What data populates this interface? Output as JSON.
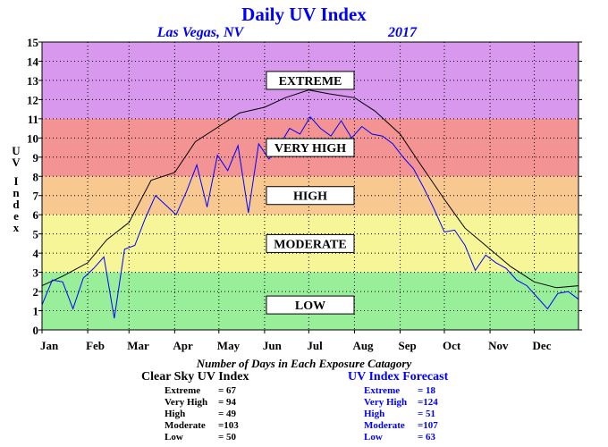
{
  "title": "Daily UV Index",
  "location": "Las Vegas, NV",
  "year": "2017",
  "colors": {
    "clear_sky_line": "#000000",
    "forecast_line": "#0000ff",
    "title": "#0000ff",
    "band_low": "#99ee99",
    "band_moderate": "#f6f699",
    "band_high": "#f8c891",
    "band_very_high": "#f39393",
    "band_extreme": "#d898ee"
  },
  "footer": {
    "caption": "Number of Days in Each Exposure Catagory",
    "clear_sky": {
      "heading": "Clear Sky UV Index",
      "rows": [
        {
          "label": "Extreme",
          "value": "= 67"
        },
        {
          "label": "Very High",
          "value": "= 94"
        },
        {
          "label": "High",
          "value": "= 49"
        },
        {
          "label": "Moderate",
          "value": "=103"
        },
        {
          "label": "Low",
          "value": "= 50"
        }
      ]
    },
    "forecast": {
      "heading": "UV Index Forecast",
      "rows": [
        {
          "label": "Extreme",
          "value": "= 18"
        },
        {
          "label": "Very High",
          "value": "=124"
        },
        {
          "label": "High",
          "value": "= 51"
        },
        {
          "label": "Moderate",
          "value": "=107"
        },
        {
          "label": "Low",
          "value": "= 63"
        }
      ]
    }
  },
  "chart_data": {
    "type": "line",
    "title": "Daily UV Index",
    "subtitle": "Las Vegas, NV 2017",
    "ylabel": "UV Index",
    "xlabel": "",
    "ylim": [
      0,
      15
    ],
    "xlim": [
      1,
      365
    ],
    "y_ticks": [
      0,
      1,
      2,
      3,
      4,
      5,
      6,
      7,
      8,
      9,
      10,
      11,
      12,
      13,
      14,
      15
    ],
    "x_tick_labels": [
      "Jan",
      "Feb",
      "Mar",
      "Apr",
      "May",
      "Jun",
      "Jul",
      "Aug",
      "Sep",
      "Oct",
      "Nov",
      "Dec"
    ],
    "grid": true,
    "bands": [
      {
        "label": "LOW",
        "from": 0,
        "to": 3
      },
      {
        "label": "MODERATE",
        "from": 3,
        "to": 6
      },
      {
        "label": "HIGH",
        "from": 6,
        "to": 8
      },
      {
        "label": "VERY HIGH",
        "from": 8,
        "to": 11
      },
      {
        "label": "EXTREME",
        "from": 11,
        "to": 15
      }
    ],
    "series": [
      {
        "name": "Clear Sky UV Index",
        "x": [
          1,
          15,
          32,
          45,
          60,
          75,
          91,
          105,
          121,
          135,
          152,
          166,
          182,
          196,
          213,
          227,
          244,
          258,
          274,
          288,
          305,
          319,
          335,
          350,
          365
        ],
        "values": [
          2.3,
          2.8,
          3.5,
          4.7,
          5.6,
          7.8,
          8.2,
          9.8,
          10.6,
          11.3,
          11.6,
          12.1,
          12.5,
          12.3,
          12.1,
          11.4,
          10.2,
          8.6,
          6.8,
          5.3,
          4.2,
          3.3,
          2.5,
          2.2,
          2.3
        ]
      },
      {
        "name": "UV Index Forecast",
        "x": [
          1,
          8,
          15,
          22,
          29,
          36,
          43,
          50,
          57,
          64,
          71,
          78,
          85,
          92,
          99,
          106,
          113,
          120,
          127,
          134,
          141,
          148,
          155,
          162,
          169,
          176,
          183,
          190,
          197,
          204,
          211,
          218,
          225,
          232,
          239,
          246,
          253,
          260,
          267,
          274,
          281,
          288,
          295,
          302,
          309,
          316,
          323,
          330,
          337,
          344,
          351,
          358,
          365
        ],
        "values": [
          1.3,
          2.6,
          2.5,
          1.1,
          2.7,
          3.2,
          3.8,
          0.6,
          4.2,
          4.4,
          5.8,
          7.0,
          6.5,
          6.0,
          7.2,
          8.6,
          6.4,
          9.1,
          8.3,
          9.6,
          6.1,
          9.7,
          8.9,
          9.6,
          10.5,
          10.2,
          11.1,
          10.5,
          10.1,
          10.9,
          10.0,
          10.6,
          10.2,
          10.1,
          9.7,
          9.0,
          8.4,
          7.4,
          6.3,
          5.1,
          5.2,
          4.4,
          3.1,
          3.9,
          3.5,
          3.2,
          2.6,
          2.3,
          1.7,
          1.1,
          1.9,
          2.0,
          1.6
        ]
      }
    ]
  }
}
